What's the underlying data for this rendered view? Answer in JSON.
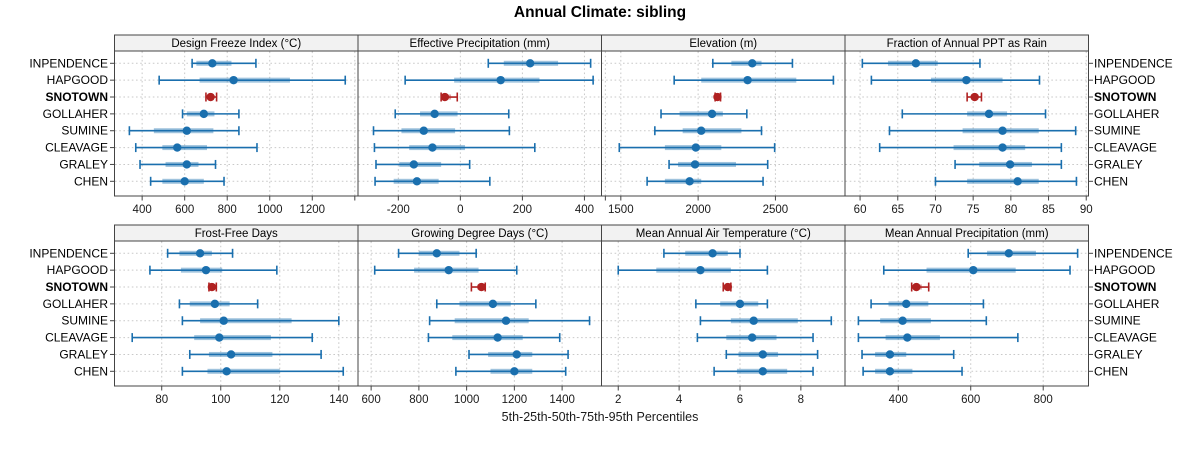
{
  "title": "Annual Climate: sibling",
  "caption": "5th-25th-50th-75th-95th Percentiles",
  "stations": [
    "INPENDENCE",
    "HAPGOOD",
    "SNOTOWN",
    "GOLLAHER",
    "SUMINE",
    "CLEAVAGE",
    "GRALEY",
    "CHEN"
  ],
  "highlighted_station": "SNOTOWN",
  "colors": {
    "series_blue": "#1a6fae",
    "highlight_red": "#b02121",
    "strip_fill": "#f2f2f2",
    "panel_border": "#444444",
    "gridline": "#c9c9c9",
    "tick_text": "#1a1a1a"
  },
  "chart_data": {
    "type": "dotplot-percentile",
    "percentile_labels": [
      "5th",
      "25th",
      "50th",
      "75th",
      "95th"
    ],
    "rows": [
      "INPENDENCE",
      "HAPGOOD",
      "SNOTOWN",
      "GOLLAHER",
      "SUMINE",
      "CLEAVAGE",
      "GRALEY",
      "CHEN"
    ],
    "legend_note": "SNOTOWN drawn in red bold; all other stations blue",
    "panels": [
      {
        "title": "Design Freeze Index (°C)",
        "grid": {
          "row": 0,
          "col": 0
        },
        "xlim": [
          270,
          1415
        ],
        "ticks": [
          400,
          600,
          800,
          1000,
          1200,
          1400
        ],
        "tick_labels": [
          "400",
          "600",
          "800",
          "1000",
          "1200",
          ""
        ],
        "values": {
          "INPENDENCE": [
            635,
            655,
            730,
            820,
            935
          ],
          "HAPGOOD": [
            480,
            670,
            830,
            1095,
            1355
          ],
          "SNOTOWN": [
            700,
            710,
            722,
            735,
            750
          ],
          "GOLLAHER": [
            590,
            610,
            690,
            740,
            855
          ],
          "SUMINE": [
            340,
            455,
            610,
            735,
            855
          ],
          "CLEAVAGE": [
            370,
            495,
            565,
            705,
            940
          ],
          "GRALEY": [
            390,
            510,
            610,
            665,
            745
          ],
          "CHEN": [
            440,
            495,
            600,
            690,
            785
          ]
        }
      },
      {
        "title": "Effective Precipitation (mm)",
        "grid": {
          "row": 0,
          "col": 1
        },
        "xlim": [
          -330,
          455
        ],
        "ticks": [
          -200,
          0,
          200,
          400
        ],
        "tick_labels": [
          "-200",
          "0",
          "200",
          "400"
        ],
        "values": {
          "INPENDENCE": [
            90,
            140,
            225,
            315,
            420
          ],
          "HAPGOOD": [
            -178,
            -20,
            130,
            255,
            428
          ],
          "SNOTOWN": [
            -62,
            -55,
            -50,
            -30,
            -10
          ],
          "GOLLAHER": [
            -210,
            -130,
            -83,
            -9,
            156
          ],
          "SUMINE": [
            -280,
            -190,
            -118,
            -17,
            158
          ],
          "CLEAVAGE": [
            -277,
            -165,
            -90,
            15,
            240
          ],
          "GRALEY": [
            -272,
            -197,
            -150,
            -62,
            30
          ],
          "CHEN": [
            -275,
            -215,
            -140,
            -70,
            95
          ]
        }
      },
      {
        "title": "Elevation (m)",
        "grid": {
          "row": 0,
          "col": 2
        },
        "xlim": [
          1375,
          2950
        ],
        "ticks": [
          1400,
          1500,
          2000,
          2500
        ],
        "tick_labels": [
          "",
          "1500",
          "2000",
          "2500"
        ],
        "values": {
          "INPENDENCE": [
            2095,
            2215,
            2350,
            2410,
            2610
          ],
          "HAPGOOD": [
            1845,
            2020,
            2320,
            2635,
            2875
          ],
          "SNOTOWN": [
            2110,
            2118,
            2125,
            2133,
            2145
          ],
          "GOLLAHER": [
            1760,
            1880,
            2090,
            2160,
            2315
          ],
          "SUMINE": [
            1720,
            1900,
            2020,
            2280,
            2410
          ],
          "CLEAVAGE": [
            1490,
            1785,
            1985,
            2150,
            2495
          ],
          "GRALEY": [
            1812,
            1870,
            1980,
            2245,
            2450
          ],
          "CHEN": [
            1670,
            1785,
            1945,
            2020,
            2420
          ]
        }
      },
      {
        "title": "Fraction of Annual PPT as Rain",
        "grid": {
          "row": 0,
          "col": 3
        },
        "xlim": [
          58,
          90.3
        ],
        "ticks": [
          60,
          65,
          70,
          75,
          80,
          85,
          90
        ],
        "tick_labels": [
          "60",
          "65",
          "70",
          "75",
          "80",
          "85",
          "90"
        ],
        "values": {
          "INPENDENCE": [
            60.3,
            63.7,
            67.4,
            70.3,
            75.9
          ],
          "HAPGOOD": [
            61.5,
            69.4,
            74.1,
            78.9,
            83.8
          ],
          "SNOTOWN": [
            74.2,
            74.7,
            75.2,
            75.7,
            76.1
          ],
          "GOLLAHER": [
            65.6,
            74.2,
            77.1,
            79.5,
            84.6
          ],
          "SUMINE": [
            63.9,
            73.6,
            78.9,
            83.7,
            88.6
          ],
          "CLEAVAGE": [
            62.6,
            72.4,
            78.9,
            81.9,
            86.7
          ],
          "GRALEY": [
            72.6,
            75.8,
            79.9,
            82.8,
            86.7
          ],
          "CHEN": [
            70.0,
            74.2,
            80.9,
            83.7,
            88.7
          ]
        }
      },
      {
        "title": "Frost-Free Days",
        "grid": {
          "row": 1,
          "col": 0
        },
        "xlim": [
          64,
          146.5
        ],
        "ticks": [
          80,
          100,
          120,
          140
        ],
        "tick_labels": [
          "80",
          "100",
          "120",
          "140"
        ],
        "values": {
          "INPENDENCE": [
            82,
            86,
            93,
            97,
            104
          ],
          "HAPGOOD": [
            76,
            86.5,
            95,
            100.5,
            119
          ],
          "SNOTOWN": [
            96,
            96.5,
            97,
            97.5,
            98.5
          ],
          "GOLLAHER": [
            86,
            89.5,
            98,
            103,
            112.5
          ],
          "SUMINE": [
            87,
            93,
            101,
            124,
            140
          ],
          "CLEAVAGE": [
            70,
            91,
            99.5,
            117,
            131
          ],
          "GRALEY": [
            89.5,
            96,
            103.5,
            117.5,
            134
          ],
          "CHEN": [
            87,
            95.5,
            102,
            120,
            141.5
          ]
        }
      },
      {
        "title": "Growing Degree Days (°C)",
        "grid": {
          "row": 1,
          "col": 1
        },
        "xlim": [
          545,
          1565
        ],
        "ticks": [
          600,
          800,
          1000,
          1200,
          1400
        ],
        "tick_labels": [
          "600",
          "800",
          "1000",
          "1200",
          "1400"
        ],
        "values": {
          "INPENDENCE": [
            715,
            800,
            875,
            970,
            1040
          ],
          "HAPGOOD": [
            615,
            780,
            925,
            1050,
            1210
          ],
          "SNOTOWN": [
            1020,
            1045,
            1062,
            1070,
            1078
          ],
          "GOLLAHER": [
            875,
            970,
            1110,
            1185,
            1290
          ],
          "SUMINE": [
            845,
            950,
            1165,
            1260,
            1515
          ],
          "CLEAVAGE": [
            840,
            940,
            1130,
            1235,
            1390
          ],
          "GRALEY": [
            1010,
            1090,
            1210,
            1275,
            1425
          ],
          "CHEN": [
            955,
            1100,
            1200,
            1275,
            1415
          ]
        }
      },
      {
        "title": "Mean Annual Air Temperature (°C)",
        "grid": {
          "row": 1,
          "col": 2
        },
        "xlim": [
          1.45,
          9.45
        ],
        "ticks": [
          2,
          4,
          6,
          8
        ],
        "tick_labels": [
          "2",
          "4",
          "6",
          "8"
        ],
        "values": {
          "INPENDENCE": [
            3.5,
            4.2,
            5.1,
            5.6,
            6.0
          ],
          "HAPGOOD": [
            2.0,
            3.25,
            4.7,
            5.7,
            6.9
          ],
          "SNOTOWN": [
            5.45,
            5.5,
            5.6,
            5.65,
            5.7
          ],
          "GOLLAHER": [
            4.55,
            5.35,
            6.0,
            6.6,
            6.9
          ],
          "SUMINE": [
            4.7,
            5.7,
            6.45,
            7.9,
            9.0
          ],
          "CLEAVAGE": [
            4.6,
            5.55,
            6.4,
            7.2,
            8.4
          ],
          "GRALEY": [
            5.55,
            5.95,
            6.75,
            7.25,
            8.55
          ],
          "CHEN": [
            5.15,
            5.9,
            6.75,
            7.55,
            8.4
          ]
        }
      },
      {
        "title": "Mean Annual Precipitation (mm)",
        "grid": {
          "row": 1,
          "col": 3
        },
        "xlim": [
          253,
          925
        ],
        "ticks": [
          400,
          600,
          800
        ],
        "tick_labels": [
          "400",
          "600",
          "800"
        ],
        "values": {
          "INPENDENCE": [
            593,
            645,
            705,
            780,
            895
          ],
          "HAPGOOD": [
            360,
            478,
            607,
            724,
            874
          ],
          "SNOTOWN": [
            437,
            444,
            450,
            465,
            484
          ],
          "GOLLAHER": [
            325,
            373,
            422,
            483,
            635
          ],
          "SUMINE": [
            290,
            350,
            412,
            490,
            643
          ],
          "CLEAVAGE": [
            290,
            365,
            425,
            515,
            730
          ],
          "GRALEY": [
            300,
            336,
            377,
            422,
            553
          ],
          "CHEN": [
            303,
            336,
            377,
            439,
            576
          ]
        }
      }
    ]
  }
}
